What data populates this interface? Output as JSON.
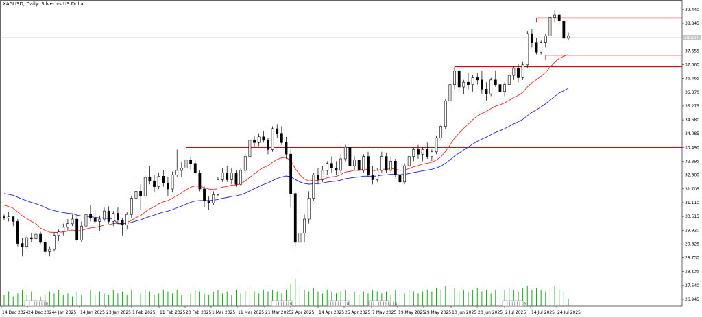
{
  "header": {
    "title": "XAGUSD, Daily: Silver vs US Dollar"
  },
  "price_axis": {
    "ticks": [
      "39.440",
      "38.845",
      "37.655",
      "37.060",
      "36.465",
      "35.870",
      "35.275",
      "34.680",
      "34.085",
      "33.490",
      "32.895",
      "32.300",
      "31.705",
      "31.110",
      "30.515",
      "29.920",
      "29.325",
      "28.730",
      "28.135",
      "27.540",
      "26.945"
    ],
    "current_price": "38.227"
  },
  "date_axis": {
    "ticks": [
      "14 Dec 2024",
      "24 Dec 2024",
      "4 Jan 2025",
      "14 Jan 2025",
      "23 Jan 2025",
      "1 Feb 2025",
      "11 Feb 2025",
      "20 Feb 2025",
      "1 Mar 2025",
      "11 Mar 2025",
      "21 Mar 2025",
      "2 Apr 2025",
      "14 Apr 2025",
      "25 Apr 2025",
      "7 May 2025",
      "19 May 2025",
      "29 May 2025",
      "10 Jun 2025",
      "20 Jun 2025",
      "2 Jul 2025",
      "14 Jul 2025",
      "24 Jul 2025"
    ]
  },
  "annotations": [
    {
      "id": "ann1",
      "text": "||||||||0"
    },
    {
      "id": "ann2",
      "text": "|||||||0"
    },
    {
      "id": "ann3",
      "text": "|||||||0"
    },
    {
      "id": "ann4",
      "text": "||||||||||4"
    },
    {
      "id": "ann5",
      "text": "||||||||0"
    }
  ],
  "colors": {
    "bull": "#ffffff",
    "bear": "#000000",
    "wick": "#000000",
    "ma_fast": "#ff2020",
    "ma_slow": "#1a1aff",
    "levels": "#e00000",
    "volume": "#18a818",
    "grid": "#e6e6e6",
    "current_line": "#c8c8c8"
  },
  "chart_data": {
    "type": "candlestick",
    "title": "XAGUSD, Daily: Silver vs US Dollar",
    "y_range": [
      26.65,
      39.85
    ],
    "levels": [
      33.49,
      36.97,
      37.47,
      39.07
    ],
    "ohlc": [
      [
        30.5,
        30.6,
        30.35,
        30.45
      ],
      [
        30.45,
        30.7,
        30.3,
        30.5
      ],
      [
        30.5,
        30.55,
        30.1,
        30.3
      ],
      [
        30.3,
        30.4,
        29.2,
        29.35
      ],
      [
        29.35,
        29.6,
        28.8,
        29.2
      ],
      [
        29.2,
        29.7,
        29.1,
        29.6
      ],
      [
        29.6,
        29.8,
        29.4,
        29.55
      ],
      [
        29.55,
        29.9,
        29.3,
        29.75
      ],
      [
        29.75,
        29.85,
        29.35,
        29.4
      ],
      [
        29.4,
        29.55,
        28.85,
        29.0
      ],
      [
        29.0,
        29.2,
        28.8,
        29.1
      ],
      [
        29.1,
        29.8,
        29.0,
        29.7
      ],
      [
        29.7,
        29.95,
        29.45,
        29.85
      ],
      [
        29.85,
        30.2,
        29.7,
        30.05
      ],
      [
        30.05,
        30.4,
        29.9,
        30.2
      ],
      [
        30.2,
        30.6,
        30.1,
        30.4
      ],
      [
        30.4,
        30.6,
        29.4,
        29.5
      ],
      [
        29.5,
        30.3,
        29.4,
        30.1
      ],
      [
        30.1,
        30.7,
        30.0,
        30.6
      ],
      [
        30.6,
        31.0,
        30.3,
        30.45
      ],
      [
        30.45,
        30.8,
        30.2,
        30.3
      ],
      [
        30.3,
        30.55,
        29.9,
        30.4
      ],
      [
        30.4,
        30.9,
        30.3,
        30.75
      ],
      [
        30.75,
        30.95,
        30.2,
        30.3
      ],
      [
        30.3,
        30.75,
        30.1,
        30.65
      ],
      [
        30.65,
        30.9,
        30.2,
        30.35
      ],
      [
        30.35,
        30.45,
        29.7,
        30.15
      ],
      [
        30.15,
        30.7,
        29.95,
        30.6
      ],
      [
        30.6,
        31.4,
        30.45,
        31.3
      ],
      [
        31.3,
        32.2,
        31.2,
        31.6
      ],
      [
        31.6,
        31.9,
        30.8,
        31.4
      ],
      [
        31.4,
        32.3,
        31.3,
        32.2
      ],
      [
        32.2,
        32.7,
        31.9,
        32.05
      ],
      [
        32.05,
        32.3,
        31.55,
        31.8
      ],
      [
        31.8,
        32.4,
        31.7,
        32.25
      ],
      [
        32.25,
        32.5,
        31.8,
        31.95
      ],
      [
        31.95,
        32.2,
        31.4,
        31.7
      ],
      [
        31.7,
        32.45,
        31.55,
        32.3
      ],
      [
        32.3,
        33.4,
        32.2,
        32.5
      ],
      [
        32.5,
        32.85,
        32.2,
        32.6
      ],
      [
        32.6,
        33.1,
        32.5,
        32.95
      ],
      [
        32.95,
        33.1,
        32.55,
        32.8
      ],
      [
        32.8,
        32.95,
        32.3,
        32.4
      ],
      [
        32.4,
        32.5,
        31.6,
        31.7
      ],
      [
        31.7,
        31.8,
        30.9,
        31.2
      ],
      [
        31.2,
        31.4,
        30.8,
        31.1
      ],
      [
        31.1,
        31.6,
        31.0,
        31.45
      ],
      [
        31.45,
        32.2,
        31.4,
        32.1
      ],
      [
        32.1,
        32.6,
        32.0,
        32.4
      ],
      [
        32.4,
        32.7,
        32.0,
        32.1
      ],
      [
        32.1,
        32.6,
        31.9,
        32.4
      ],
      [
        32.4,
        32.5,
        31.8,
        31.9
      ],
      [
        31.9,
        32.6,
        31.85,
        32.5
      ],
      [
        32.5,
        33.2,
        32.4,
        33.1
      ],
      [
        33.1,
        33.9,
        33.0,
        33.8
      ],
      [
        33.8,
        34.0,
        33.5,
        33.7
      ],
      [
        33.7,
        34.1,
        33.55,
        33.95
      ],
      [
        33.95,
        34.2,
        33.7,
        33.8
      ],
      [
        33.8,
        33.9,
        33.2,
        33.4
      ],
      [
        33.4,
        34.4,
        33.3,
        34.3
      ],
      [
        34.3,
        34.5,
        33.9,
        34.1
      ],
      [
        34.1,
        34.4,
        33.6,
        33.7
      ],
      [
        33.7,
        33.95,
        33.0,
        33.2
      ],
      [
        33.2,
        33.4,
        30.9,
        31.5
      ],
      [
        31.5,
        31.6,
        29.2,
        29.4
      ],
      [
        29.4,
        30.7,
        28.1,
        29.8
      ],
      [
        29.8,
        30.6,
        29.4,
        30.4
      ],
      [
        30.4,
        31.6,
        30.2,
        31.3
      ],
      [
        31.3,
        32.4,
        31.2,
        32.3
      ],
      [
        32.3,
        32.6,
        31.9,
        32.1
      ],
      [
        32.1,
        32.7,
        32.0,
        32.5
      ],
      [
        32.5,
        32.9,
        32.3,
        32.8
      ],
      [
        32.8,
        33.1,
        32.4,
        32.6
      ],
      [
        32.6,
        32.9,
        32.3,
        32.5
      ],
      [
        32.5,
        33.2,
        32.4,
        33.0
      ],
      [
        33.0,
        33.6,
        32.9,
        33.5
      ],
      [
        33.5,
        33.6,
        32.5,
        32.7
      ],
      [
        32.7,
        33.1,
        32.5,
        32.95
      ],
      [
        32.95,
        33.0,
        32.4,
        32.5
      ],
      [
        32.5,
        33.2,
        32.4,
        33.1
      ],
      [
        33.1,
        33.3,
        32.2,
        32.3
      ],
      [
        32.3,
        32.7,
        31.9,
        32.1
      ],
      [
        32.1,
        32.6,
        32.0,
        32.5
      ],
      [
        32.5,
        33.3,
        32.4,
        33.1
      ],
      [
        33.1,
        33.25,
        32.4,
        32.5
      ],
      [
        32.5,
        33.1,
        32.4,
        32.9
      ],
      [
        32.9,
        33.0,
        32.2,
        32.3
      ],
      [
        32.3,
        32.6,
        31.8,
        32.0
      ],
      [
        32.0,
        32.8,
        31.9,
        32.7
      ],
      [
        32.7,
        33.2,
        32.6,
        33.1
      ],
      [
        33.1,
        33.5,
        32.9,
        33.4
      ],
      [
        33.4,
        33.6,
        33.0,
        33.2
      ],
      [
        33.2,
        33.5,
        32.9,
        33.4
      ],
      [
        33.4,
        33.7,
        33.0,
        33.1
      ],
      [
        33.1,
        33.4,
        32.9,
        33.3
      ],
      [
        33.3,
        34.0,
        33.2,
        33.9
      ],
      [
        33.9,
        34.5,
        33.8,
        34.4
      ],
      [
        34.4,
        35.6,
        34.3,
        35.5
      ],
      [
        35.5,
        36.4,
        35.3,
        36.2
      ],
      [
        36.2,
        36.9,
        36.0,
        36.8
      ],
      [
        36.8,
        36.9,
        35.9,
        36.1
      ],
      [
        36.1,
        36.4,
        35.8,
        36.3
      ],
      [
        36.3,
        36.7,
        36.0,
        36.2
      ],
      [
        36.2,
        36.6,
        35.9,
        36.5
      ],
      [
        36.5,
        36.7,
        36.2,
        36.4
      ],
      [
        36.4,
        36.8,
        35.8,
        36.0
      ],
      [
        36.0,
        36.3,
        35.5,
        35.8
      ],
      [
        35.8,
        36.5,
        35.7,
        36.4
      ],
      [
        36.4,
        36.8,
        36.1,
        36.2
      ],
      [
        36.2,
        36.4,
        35.6,
        35.9
      ],
      [
        35.9,
        36.3,
        35.7,
        36.2
      ],
      [
        36.2,
        36.7,
        36.1,
        36.6
      ],
      [
        36.6,
        37.0,
        36.4,
        36.9
      ],
      [
        36.9,
        37.1,
        36.3,
        36.5
      ],
      [
        36.5,
        37.2,
        36.4,
        37.05
      ],
      [
        37.05,
        38.5,
        36.9,
        38.4
      ],
      [
        38.4,
        38.6,
        37.8,
        38.0
      ],
      [
        38.0,
        38.2,
        37.5,
        37.6
      ],
      [
        37.6,
        38.1,
        37.5,
        38.0
      ],
      [
        38.0,
        38.4,
        37.8,
        38.3
      ],
      [
        38.3,
        39.2,
        38.2,
        39.1
      ],
      [
        39.1,
        39.4,
        38.9,
        39.2
      ],
      [
        39.2,
        39.3,
        38.8,
        38.95
      ],
      [
        38.95,
        39.0,
        38.1,
        38.2
      ],
      [
        38.2,
        38.45,
        38.1,
        38.3
      ]
    ],
    "volume": [
      6,
      8,
      5,
      7,
      9,
      6,
      8,
      7,
      5,
      6,
      8,
      7,
      9,
      6,
      7,
      5,
      8,
      6,
      7,
      9,
      6,
      8,
      7,
      6,
      9,
      7,
      8,
      6,
      9,
      8,
      7,
      9,
      8,
      6,
      7,
      9,
      8,
      7,
      9,
      6,
      8,
      7,
      9,
      8,
      7,
      6,
      8,
      9,
      7,
      8,
      6,
      9,
      7,
      8,
      9,
      8,
      7,
      9,
      8,
      9,
      8,
      7,
      9,
      12,
      15,
      11,
      9,
      8,
      10,
      8,
      7,
      9,
      8,
      7,
      8,
      9,
      7,
      8,
      6,
      8,
      7,
      9,
      8,
      7,
      8,
      6,
      9,
      8,
      7,
      9,
      8,
      7,
      8,
      9,
      8,
      10,
      9,
      11,
      9,
      10,
      8,
      9,
      8,
      9,
      10,
      8,
      9,
      7,
      9,
      8,
      9,
      10,
      9,
      8,
      10,
      11,
      9,
      10,
      9,
      8,
      10,
      11,
      9,
      8,
      4
    ]
  }
}
